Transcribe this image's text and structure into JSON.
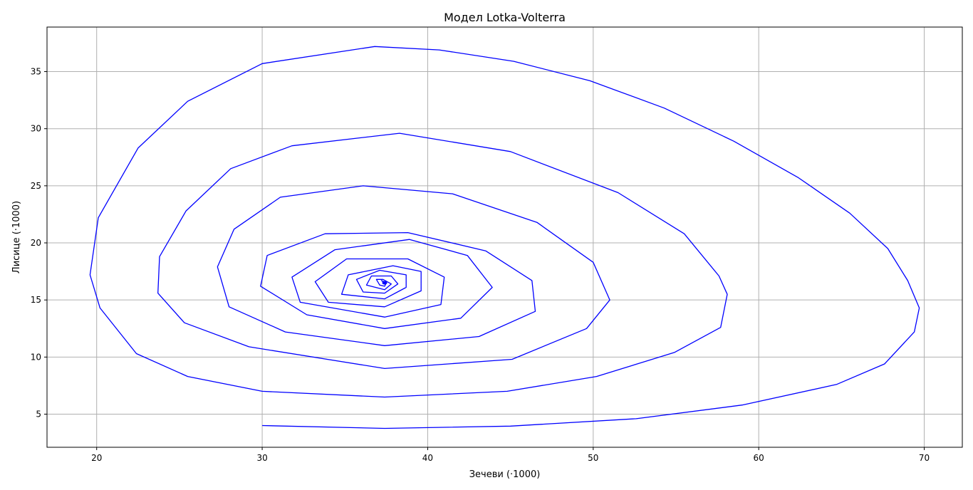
{
  "chart_data": {
    "type": "line",
    "title": "Модел Lotka-Volterra",
    "xlabel": "Зечеви (·1000)",
    "ylabel": "Лисице (·1000)",
    "xlim": [
      17,
      72.3
    ],
    "ylim": [
      2.1,
      38.9
    ],
    "xticks": [
      20,
      30,
      40,
      50,
      60,
      70
    ],
    "yticks": [
      5,
      10,
      15,
      20,
      25,
      30,
      35
    ],
    "grid": true,
    "legend": "none",
    "colors": {
      "line": "#0000ff",
      "grid": "#b0b0b0",
      "axes": "#000000"
    },
    "model": {
      "x0": 30,
      "y0": 4,
      "equilibrium": [
        37.4,
        16.5
      ],
      "period": 21,
      "outer_turn": {
        "x_max": 69.7,
        "x_min": 19.6,
        "y_max": 37.2,
        "y_min": 3.75
      },
      "decay_per_turn": 0.8
    },
    "series": [
      {
        "x": [
          30.0,
          37.4,
          45.0,
          52.6,
          59.0,
          64.7,
          67.6,
          69.4,
          69.7,
          69.0,
          67.8,
          65.5,
          62.4,
          58.5,
          54.3,
          49.8,
          45.2,
          40.7,
          36.8,
          30.0,
          25.5,
          22.5,
          20.1,
          19.6,
          20.2,
          22.4,
          25.5,
          30.0,
          37.4,
          44.8,
          50.2,
          54.9,
          57.7,
          58.1,
          57.6,
          55.5,
          51.5,
          45.0,
          38.3,
          31.8,
          28.1,
          25.4,
          23.8,
          23.7,
          25.3,
          29.2,
          37.4,
          45.1,
          49.6,
          51.0,
          50.0,
          46.6,
          41.5,
          36.1,
          31.1,
          28.3,
          27.3,
          28.0,
          31.4,
          37.4,
          43.1,
          46.5,
          46.3,
          43.5,
          38.8,
          33.8,
          30.3,
          29.9,
          32.7,
          37.4,
          42.0,
          43.9,
          42.4,
          38.9,
          34.4,
          31.8,
          32.3,
          37.4,
          40.8,
          41.0,
          38.8,
          35.1,
          33.2,
          34.0,
          37.4,
          39.6,
          39.6,
          37.9,
          35.2,
          34.8,
          37.4,
          38.7,
          38.7,
          37.1,
          35.7,
          36.1,
          37.4,
          38.2,
          37.8,
          36.6,
          36.3,
          37.4,
          37.8,
          37.3,
          36.9,
          37.1,
          37.4,
          37.5,
          37.2,
          37.3,
          37.4
        ],
        "y": [
          4.0,
          3.75,
          3.95,
          4.6,
          5.8,
          7.6,
          9.4,
          12.2,
          14.3,
          16.7,
          19.5,
          22.6,
          25.7,
          28.9,
          31.8,
          34.2,
          35.9,
          36.9,
          37.2,
          35.7,
          32.4,
          28.3,
          22.2,
          17.2,
          14.3,
          10.3,
          8.3,
          7.0,
          6.5,
          7.0,
          8.3,
          10.4,
          12.6,
          15.5,
          17.1,
          20.8,
          24.4,
          28.0,
          29.6,
          28.5,
          26.5,
          22.8,
          18.8,
          15.6,
          13.0,
          10.9,
          9.0,
          9.8,
          12.5,
          15.0,
          18.3,
          21.8,
          24.3,
          25.0,
          24.0,
          21.2,
          17.9,
          14.4,
          12.2,
          11.0,
          11.8,
          14.0,
          16.7,
          19.3,
          20.9,
          20.8,
          18.9,
          16.2,
          13.7,
          12.5,
          13.4,
          16.1,
          18.9,
          20.3,
          19.4,
          17.0,
          14.8,
          13.5,
          14.6,
          17.0,
          18.6,
          18.6,
          16.6,
          14.8,
          14.4,
          15.8,
          17.5,
          18.0,
          17.2,
          15.5,
          15.1,
          16.1,
          17.2,
          17.6,
          16.8,
          15.7,
          15.6,
          16.4,
          17.1,
          17.1,
          16.3,
          15.9,
          16.4,
          16.8,
          16.8,
          16.3,
          16.2,
          16.5,
          16.7,
          16.6,
          16.5
        ]
      }
    ]
  }
}
